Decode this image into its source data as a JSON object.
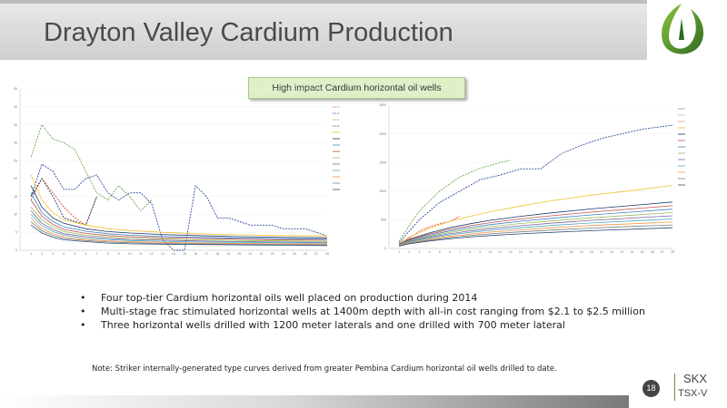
{
  "title": "Drayton Valley Cardium Production",
  "callout": "High impact Cardium horizontal oil wells",
  "bullets": [
    "Four top-tier Cardium horizontal oils well placed on production during 2014",
    "Multi-stage frac stimulated horizontal wells at 1400m depth with all-in cost ranging from $2.1 to $2.5 million",
    "Three horizontal wells drilled with 1200 meter laterals and one drilled with 700 meter lateral"
  ],
  "note": "Note:  Striker internally-generated type curves derived from greater Pembina Cardium horizontal oil wells drilled to date.",
  "page_number": "18",
  "ticker": {
    "line1": "SKX",
    "line2": "TSX-V"
  },
  "colors": {
    "logo_green": "#4a8a2a",
    "title_bar": "#d6d6d6",
    "callout_bg": "#dff0c8"
  },
  "chart_data": [
    {
      "type": "line",
      "xlim": [
        0,
        28
      ],
      "ylim": [
        0,
        45
      ],
      "xticks": [
        1,
        2,
        3,
        4,
        5,
        6,
        7,
        8,
        9,
        10,
        11,
        12,
        13,
        14,
        15,
        16,
        17,
        18,
        19,
        20,
        21,
        22,
        23,
        24,
        25,
        26,
        27,
        28
      ],
      "yticks": [
        0,
        5,
        10,
        15,
        20,
        25,
        30,
        35,
        40,
        45
      ],
      "series": [
        {
          "color": "#e74c3c",
          "style": "dashed",
          "x": [
            1,
            2,
            3,
            4,
            5,
            6,
            7
          ],
          "y": [
            14,
            20,
            16,
            12,
            9,
            7,
            15
          ]
        },
        {
          "color": "#2b4c9b",
          "style": "dashed",
          "x": [
            1,
            2,
            3,
            4,
            5,
            6,
            7,
            8,
            9,
            10,
            11,
            12,
            13,
            14,
            15,
            16,
            17,
            18,
            19,
            20,
            21,
            22,
            23,
            24,
            25,
            26,
            27,
            28
          ],
          "y": [
            15,
            24,
            22,
            17,
            17,
            20,
            21,
            16,
            14,
            16,
            16,
            13,
            3,
            0,
            0,
            18,
            15,
            9,
            9,
            8,
            7,
            7,
            7,
            6,
            6,
            6,
            5,
            4
          ]
        },
        {
          "color": "#6aa84f",
          "style": "dashed",
          "x": [
            1,
            2,
            3,
            4,
            5,
            6,
            7,
            8,
            9,
            10,
            11,
            12
          ],
          "y": [
            26,
            35,
            31,
            30,
            28,
            22,
            16,
            14,
            18,
            15,
            11,
            14
          ]
        },
        {
          "color": "#1f3a6b",
          "style": "dashed",
          "x": [
            1,
            2,
            3,
            4,
            5,
            6,
            7
          ],
          "y": [
            15,
            20,
            15,
            9,
            8,
            7,
            15
          ]
        },
        {
          "color": "#f1c232",
          "style": "solid",
          "x": [
            1,
            2,
            3,
            4,
            6,
            8,
            10,
            13,
            16,
            20,
            24,
            28
          ],
          "y": [
            21,
            14,
            10.5,
            8.5,
            7,
            6,
            5.5,
            5,
            4.6,
            4.3,
            4.1,
            4
          ]
        },
        {
          "color": "#1f3a6b",
          "style": "solid",
          "x": [
            1,
            2,
            3,
            4,
            6,
            8,
            10,
            13,
            16,
            20,
            24,
            28
          ],
          "y": [
            18,
            12,
            9,
            7.5,
            6,
            5.2,
            4.8,
            4.4,
            4.1,
            3.8,
            3.6,
            3.5
          ]
        },
        {
          "color": "#3d85c6",
          "style": "solid",
          "x": [
            1,
            2,
            3,
            4,
            6,
            8,
            10,
            13,
            16,
            20,
            24,
            28
          ],
          "y": [
            16,
            10.5,
            8,
            6.5,
            5.3,
            4.6,
            4.2,
            3.9,
            3.6,
            3.4,
            3.2,
            3.1
          ]
        },
        {
          "color": "#c0504d",
          "style": "solid",
          "x": [
            1,
            2,
            3,
            4,
            6,
            8,
            10,
            13,
            16,
            20,
            24,
            28
          ],
          "y": [
            14,
            9.5,
            7.2,
            5.8,
            4.7,
            4.1,
            3.8,
            3.5,
            3.3,
            3.1,
            2.9,
            2.8
          ]
        },
        {
          "color": "#9bbb59",
          "style": "solid",
          "x": [
            1,
            2,
            3,
            4,
            6,
            8,
            10,
            13,
            16,
            20,
            24,
            28
          ],
          "y": [
            12,
            8.5,
            6.5,
            5.2,
            4.2,
            3.7,
            3.4,
            3.1,
            2.9,
            2.7,
            2.6,
            2.5
          ]
        },
        {
          "color": "#8064a2",
          "style": "solid",
          "x": [
            1,
            2,
            3,
            4,
            6,
            8,
            10,
            13,
            16,
            20,
            24,
            28
          ],
          "y": [
            11,
            7.5,
            5.8,
            4.6,
            3.8,
            3.3,
            3.0,
            2.8,
            2.6,
            2.4,
            2.3,
            2.2
          ]
        },
        {
          "color": "#4bacc6",
          "style": "solid",
          "x": [
            1,
            2,
            3,
            4,
            6,
            8,
            10,
            13,
            16,
            20,
            24,
            28
          ],
          "y": [
            10,
            6.8,
            5.2,
            4.2,
            3.4,
            3.0,
            2.7,
            2.5,
            2.3,
            2.2,
            2.1,
            2.0
          ]
        },
        {
          "color": "#f79646",
          "style": "solid",
          "x": [
            1,
            2,
            3,
            4,
            6,
            8,
            10,
            13,
            16,
            20,
            24,
            28
          ],
          "y": [
            9,
            6.0,
            4.6,
            3.7,
            3.0,
            2.6,
            2.4,
            2.2,
            2.0,
            1.9,
            1.8,
            1.7
          ]
        },
        {
          "color": "#7f7f7f",
          "style": "solid",
          "x": [
            1,
            2,
            3,
            4,
            6,
            8,
            10,
            13,
            16,
            20,
            24,
            28
          ],
          "y": [
            8,
            5.4,
            4.1,
            3.3,
            2.7,
            2.3,
            2.1,
            1.9,
            1.8,
            1.7,
            1.6,
            1.5
          ]
        },
        {
          "color": "#2c4d75",
          "style": "solid",
          "x": [
            1,
            2,
            3,
            4,
            6,
            8,
            10,
            13,
            16,
            20,
            24,
            28
          ],
          "y": [
            7,
            4.8,
            3.6,
            2.9,
            2.4,
            2.0,
            1.8,
            1.7,
            1.6,
            1.5,
            1.4,
            1.3
          ]
        }
      ]
    },
    {
      "type": "line",
      "xlim": [
        0,
        28
      ],
      "ylim": [
        0,
        2500
      ],
      "xticks": [
        1,
        2,
        3,
        4,
        5,
        6,
        7,
        8,
        9,
        10,
        11,
        12,
        13,
        14,
        15,
        16,
        17,
        18,
        19,
        20,
        21,
        22,
        23,
        24,
        25,
        26,
        27,
        28
      ],
      "yticks": [
        0,
        500,
        1000,
        1500,
        2000,
        2500
      ],
      "series": [
        {
          "color": "#2b4c9b",
          "style": "dashed",
          "x": [
            1,
            2,
            3,
            5,
            7,
            9,
            11,
            13,
            15,
            17,
            19,
            21,
            23,
            25,
            28
          ],
          "y": [
            100,
            300,
            500,
            800,
            1000,
            1200,
            1280,
            1390,
            1390,
            1650,
            1800,
            1920,
            2000,
            2080,
            2150
          ]
        },
        {
          "color": "#6aa84f",
          "style": "dashed",
          "x": [
            1,
            2,
            3,
            5,
            7,
            9,
            11,
            12
          ],
          "y": [
            120,
            400,
            650,
            1000,
            1250,
            1400,
            1500,
            1540
          ]
        },
        {
          "color": "#e74c3c",
          "style": "dashed",
          "x": [
            1,
            2,
            3,
            4,
            5,
            6,
            7
          ],
          "y": [
            60,
            180,
            300,
            380,
            430,
            470,
            560
          ]
        },
        {
          "color": "#f1c232",
          "style": "solid",
          "x": [
            1,
            2,
            4,
            6,
            8,
            10,
            13,
            16,
            20,
            24,
            28
          ],
          "y": [
            100,
            200,
            350,
            470,
            560,
            640,
            740,
            830,
            930,
            1010,
            1100
          ]
        },
        {
          "color": "#1f3a6b",
          "style": "solid",
          "x": [
            1,
            2,
            4,
            6,
            8,
            10,
            13,
            16,
            20,
            24,
            28
          ],
          "y": [
            80,
            160,
            270,
            360,
            430,
            490,
            560,
            620,
            690,
            750,
            810
          ]
        },
        {
          "color": "#c0504d",
          "style": "solid",
          "x": [
            1,
            2,
            4,
            6,
            8,
            10,
            13,
            16,
            20,
            24,
            28
          ],
          "y": [
            75,
            150,
            250,
            330,
            395,
            450,
            515,
            570,
            635,
            690,
            745
          ]
        },
        {
          "color": "#3d85c6",
          "style": "solid",
          "x": [
            1,
            2,
            4,
            6,
            8,
            10,
            13,
            16,
            20,
            24,
            28
          ],
          "y": [
            70,
            140,
            230,
            305,
            365,
            415,
            475,
            525,
            585,
            635,
            685
          ]
        },
        {
          "color": "#9bbb59",
          "style": "solid",
          "x": [
            1,
            2,
            4,
            6,
            8,
            10,
            13,
            16,
            20,
            24,
            28
          ],
          "y": [
            65,
            130,
            210,
            280,
            335,
            380,
            435,
            480,
            535,
            580,
            625
          ]
        },
        {
          "color": "#8064a2",
          "style": "solid",
          "x": [
            1,
            2,
            4,
            6,
            8,
            10,
            13,
            16,
            20,
            24,
            28
          ],
          "y": [
            60,
            120,
            195,
            255,
            305,
            345,
            395,
            440,
            490,
            530,
            570
          ]
        },
        {
          "color": "#4bacc6",
          "style": "solid",
          "x": [
            1,
            2,
            4,
            6,
            8,
            10,
            13,
            16,
            20,
            24,
            28
          ],
          "y": [
            55,
            110,
            180,
            235,
            280,
            315,
            360,
            400,
            445,
            480,
            515
          ]
        },
        {
          "color": "#f79646",
          "style": "solid",
          "x": [
            1,
            2,
            4,
            6,
            8,
            10,
            13,
            16,
            20,
            24,
            28
          ],
          "y": [
            50,
            100,
            160,
            210,
            250,
            285,
            325,
            360,
            400,
            430,
            460
          ]
        },
        {
          "color": "#7f7f7f",
          "style": "solid",
          "x": [
            1,
            2,
            4,
            6,
            8,
            10,
            13,
            16,
            20,
            24,
            28
          ],
          "y": [
            45,
            90,
            145,
            190,
            225,
            255,
            290,
            320,
            355,
            385,
            410
          ]
        },
        {
          "color": "#2c4d75",
          "style": "solid",
          "x": [
            1,
            2,
            4,
            6,
            8,
            10,
            13,
            16,
            20,
            24,
            28
          ],
          "y": [
            40,
            80,
            130,
            170,
            200,
            225,
            255,
            280,
            310,
            335,
            360
          ]
        }
      ]
    }
  ]
}
